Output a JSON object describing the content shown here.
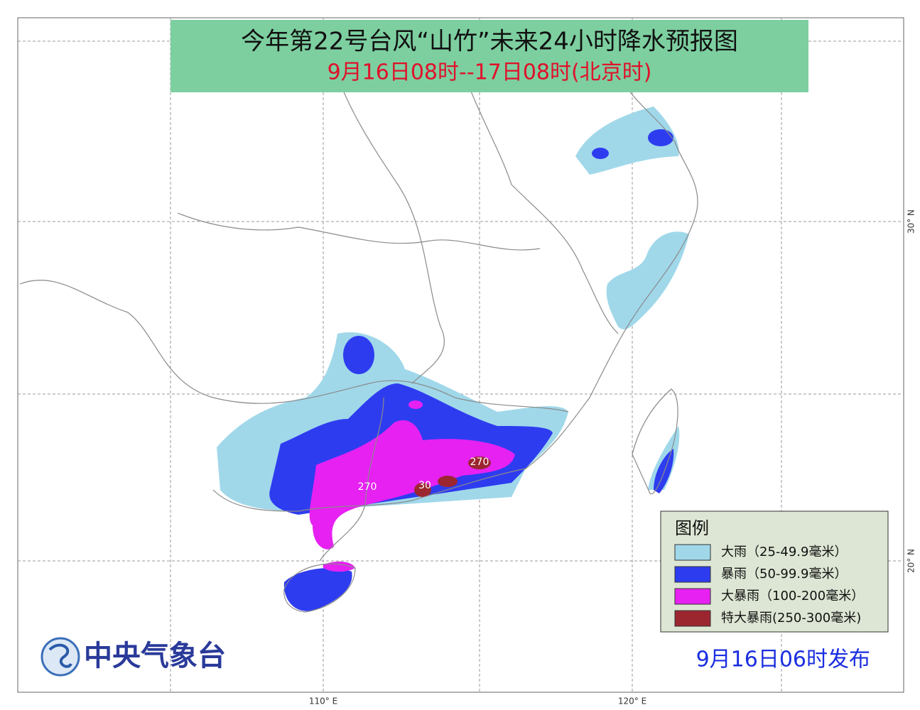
{
  "header": {
    "title": "今年第22号台风“山竹”未来24小时降水预报图",
    "subtitle": "9月16日08时--17日08时(北京时)"
  },
  "legend": {
    "title": "图例",
    "items": [
      {
        "label": "大雨（25-49.9毫米）",
        "color": "#a0d8ea"
      },
      {
        "label": "暴雨（50-99.9毫米）",
        "color": "#2e3cf0"
      },
      {
        "label": "大暴雨（100-200毫米）",
        "color": "#e621f2"
      },
      {
        "label": "特大暴雨(250-300毫米)",
        "color": "#9b2630"
      }
    ]
  },
  "map_labels": [
    "270",
    "30",
    "270"
  ],
  "axes": {
    "x_labels": [
      "110° E",
      "120° E"
    ],
    "y_labels": [
      "30° N",
      "20° N"
    ]
  },
  "footer": {
    "publisher": "中央气象台",
    "issued": "9月16日06时发布"
  }
}
